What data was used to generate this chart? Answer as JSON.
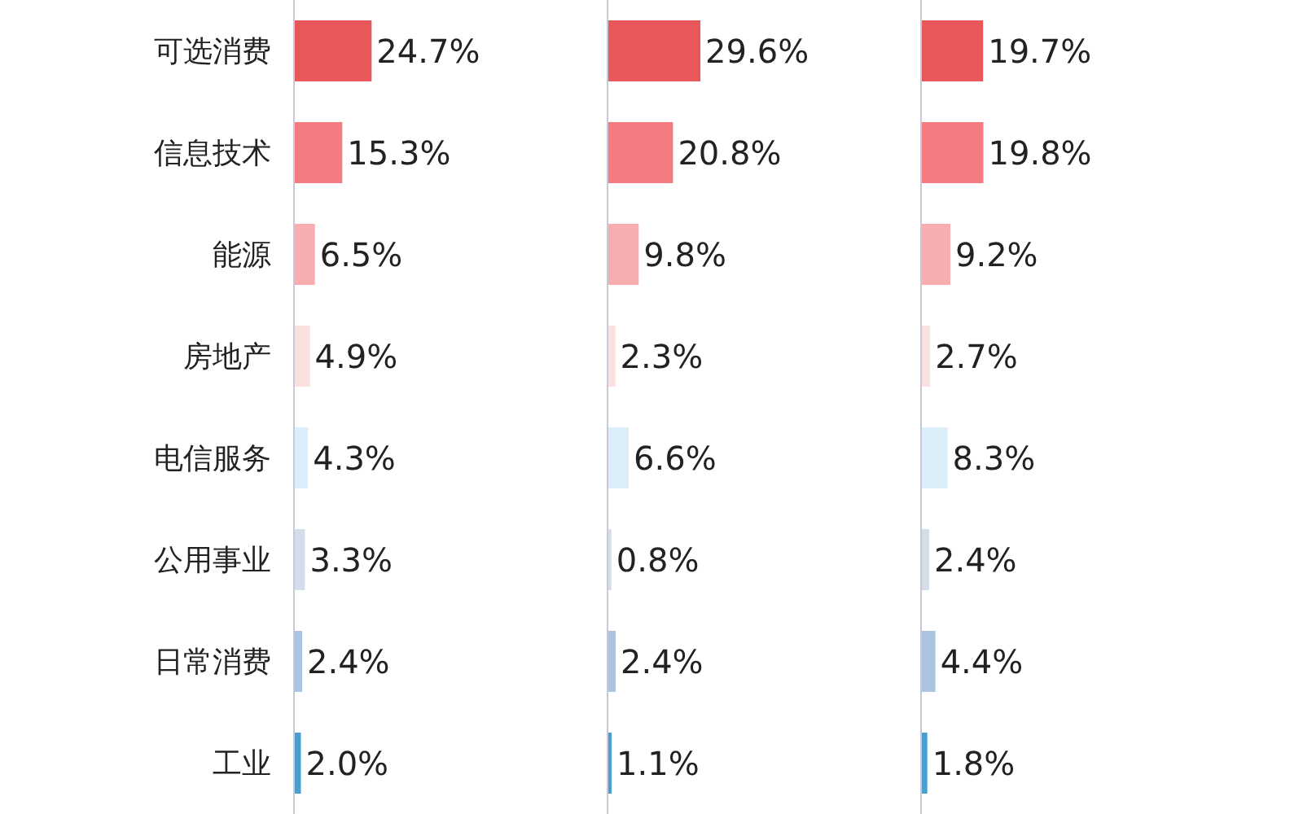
{
  "chart_data": [
    {
      "type": "bar",
      "orientation": "horizontal",
      "categories": [
        "可选消费",
        "信息技术",
        "能源",
        "房地产",
        "电信服务",
        "公用事业",
        "日常消费",
        "工业"
      ],
      "values": [
        24.7,
        15.3,
        6.5,
        4.9,
        4.3,
        3.3,
        2.4,
        2.0
      ],
      "colors": [
        "#e8575a",
        "#f47c80",
        "#f6aeb1",
        "#fbe0e0",
        "#dceef9",
        "#d5dcea",
        "#aac4e2",
        "#4a9fd0"
      ],
      "value_labels": [
        "24.7%",
        "15.3%",
        "6.5%",
        "4.9%",
        "4.3%",
        "3.3%",
        "2.4%",
        "2.0%"
      ],
      "tick_labels": "y"
    },
    {
      "type": "bar",
      "orientation": "horizontal",
      "categories": [
        null,
        null,
        null,
        null,
        null,
        null,
        null,
        null
      ],
      "values": [
        29.6,
        20.8,
        9.8,
        2.3,
        6.6,
        0.8,
        2.4,
        1.1
      ],
      "colors": [
        "#e8575a",
        "#f47c80",
        "#f6aeb1",
        "#fbe0e0",
        "#dceef9",
        "#d5dcea",
        "#aac4e2",
        "#4a9fd0"
      ],
      "value_labels": [
        "29.6%",
        "20.8%",
        "9.8%",
        "2.3%",
        "6.6%",
        "0.8%",
        "2.4%",
        "1.1%"
      ],
      "tick_labels": false
    },
    {
      "type": "bar",
      "orientation": "horizontal",
      "categories": [
        null,
        null,
        null,
        null,
        null,
        null,
        null,
        null
      ],
      "values": [
        19.7,
        19.8,
        9.2,
        2.7,
        8.3,
        2.4,
        4.4,
        1.8
      ],
      "colors": [
        "#e8575a",
        "#f47c80",
        "#f6aeb1",
        "#fbe0e0",
        "#dceef9",
        "#d5dcea",
        "#aac4e2",
        "#4a9fd0"
      ],
      "value_labels": [
        "19.7%",
        "19.8%",
        "9.2%",
        "2.7%",
        "8.3%",
        "2.4%",
        "4.4%",
        "1.8%"
      ],
      "tick_labels": false
    }
  ]
}
